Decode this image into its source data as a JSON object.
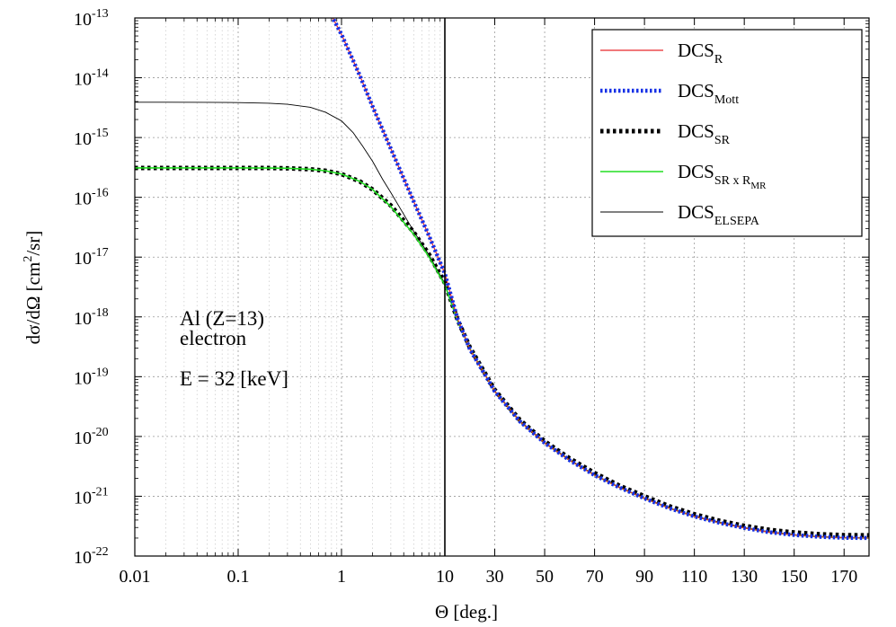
{
  "chart_data": {
    "type": "line",
    "xlabel": "Θ [deg.]",
    "ylabel_base": "dσ/dΩ [cm",
    "ylabel_sup": "2",
    "ylabel_tail": "/sr]",
    "x_scale": "log below 10 deg, linear above 10 deg",
    "y_scale": "log",
    "xlim": [
      0.01,
      180
    ],
    "ylim": [
      1e-22,
      1e-13
    ],
    "grid": true,
    "legend_position": "top-right",
    "annotations": [
      "Al (Z=13)",
      "electron",
      "E = 32 [keV]"
    ],
    "x_ticks": [
      {
        "value": 0.01,
        "label": "0.01"
      },
      {
        "value": 0.1,
        "label": "0.1"
      },
      {
        "value": 1,
        "label": "1"
      },
      {
        "value": 10,
        "label": "10"
      },
      {
        "value": 30,
        "label": "30"
      },
      {
        "value": 50,
        "label": "50"
      },
      {
        "value": 70,
        "label": "70"
      },
      {
        "value": 90,
        "label": "90"
      },
      {
        "value": 110,
        "label": "110"
      },
      {
        "value": 130,
        "label": "130"
      },
      {
        "value": 150,
        "label": "150"
      },
      {
        "value": 170,
        "label": "170"
      }
    ],
    "y_ticks": [
      {
        "exp": -13,
        "base": "10",
        "sup": "-13"
      },
      {
        "exp": -14,
        "base": "10",
        "sup": "-14"
      },
      {
        "exp": -15,
        "base": "10",
        "sup": "-15"
      },
      {
        "exp": -16,
        "base": "10",
        "sup": "-16"
      },
      {
        "exp": -17,
        "base": "10",
        "sup": "-17"
      },
      {
        "exp": -18,
        "base": "10",
        "sup": "-18"
      },
      {
        "exp": -19,
        "base": "10",
        "sup": "-19"
      },
      {
        "exp": -20,
        "base": "10",
        "sup": "-20"
      },
      {
        "exp": -21,
        "base": "10",
        "sup": "-21"
      },
      {
        "exp": -22,
        "base": "10",
        "sup": "-22"
      }
    ],
    "series": [
      {
        "legend_base": "DCS",
        "legend_sub": "R",
        "legend_sub2": "",
        "color": "#e8282b",
        "dash": "none",
        "width": 1.2,
        "x": [
          0.8,
          1,
          1.5,
          2,
          3,
          5,
          7,
          10,
          15,
          20,
          30,
          40,
          50,
          60,
          70,
          80,
          90,
          100,
          110,
          120,
          130,
          140,
          150,
          160,
          170,
          180
        ],
        "y": [
          1.1e-13,
          5.3e-14,
          1.1e-14,
          3.3e-15,
          6.5e-16,
          8.5e-17,
          2.3e-17,
          5.3e-18,
          9.5e-19,
          2.9e-19,
          5.7e-20,
          1.8e-20,
          7.8e-21,
          4e-21,
          2.25e-21,
          1.4e-21,
          9.2e-22,
          6.3e-22,
          4.6e-22,
          3.6e-22,
          2.95e-22,
          2.5e-22,
          2.25e-22,
          2.1e-22,
          2.02e-22,
          2e-22
        ]
      },
      {
        "legend_base": "DCS",
        "legend_sub": "Mott",
        "legend_sub2": "",
        "color": "#1530e6",
        "dash": "2.5 2.5",
        "width": 4.5,
        "x": [
          0.8,
          1,
          1.5,
          2,
          3,
          5,
          7,
          10,
          15,
          20,
          30,
          40,
          50,
          60,
          70,
          80,
          90,
          100,
          110,
          120,
          130,
          140,
          150,
          160,
          170,
          180
        ],
        "y": [
          1.1e-13,
          5.3e-14,
          1.1e-14,
          3.3e-15,
          6.5e-16,
          8.5e-17,
          2.3e-17,
          5.3e-18,
          9.5e-19,
          2.9e-19,
          5.7e-20,
          1.8e-20,
          7.8e-21,
          4e-21,
          2.25e-21,
          1.4e-21,
          9.2e-22,
          6.3e-22,
          4.6e-22,
          3.6e-22,
          2.95e-22,
          2.5e-22,
          2.25e-22,
          2.1e-22,
          2.02e-22,
          2e-22
        ]
      },
      {
        "legend_base": "DCS",
        "legend_sub": "SR",
        "legend_sub2": "",
        "color": "#000000",
        "dash": "3.5 3.5",
        "width": 5,
        "x": [
          0.01,
          0.02,
          0.05,
          0.1,
          0.2,
          0.3,
          0.5,
          0.7,
          1,
          1.5,
          2,
          3,
          5,
          7,
          10,
          15,
          20,
          30,
          40,
          50,
          60,
          70,
          80,
          90,
          100,
          110,
          120,
          130,
          140,
          150,
          160,
          170,
          180
        ],
        "y": [
          3.1e-16,
          3.1e-16,
          3.1e-16,
          3.1e-16,
          3.09e-16,
          3.06e-16,
          2.95e-16,
          2.78e-16,
          2.45e-16,
          1.85e-16,
          1.35e-16,
          7.3e-17,
          2.6e-17,
          1.12e-17,
          3.7e-18,
          9.2e-19,
          3.1e-19,
          6e-20,
          1.9e-20,
          8.3e-21,
          4.3e-21,
          2.45e-21,
          1.5e-21,
          1e-21,
          6.8e-22,
          5e-22,
          3.9e-22,
          3.2e-22,
          2.75e-22,
          2.48e-22,
          2.32e-22,
          2.24e-22,
          2.22e-22
        ]
      },
      {
        "legend_base": "DCS",
        "legend_sub": "SR x R",
        "legend_sub2": "MR",
        "color": "#22dd22",
        "dash": "none",
        "width": 1.6,
        "x": [
          0.01,
          0.02,
          0.05,
          0.1,
          0.2,
          0.3,
          0.5,
          0.7,
          1,
          1.5,
          2,
          3,
          5,
          7,
          10,
          15,
          20,
          30,
          40,
          50,
          60,
          70,
          80,
          90,
          100,
          110,
          120,
          130,
          140,
          150,
          160,
          170,
          180
        ],
        "y": [
          3.1e-16,
          3.1e-16,
          3.1e-16,
          3.1e-16,
          3.09e-16,
          3.06e-16,
          2.95e-16,
          2.78e-16,
          2.45e-16,
          1.85e-16,
          1.35e-16,
          7e-17,
          2.4e-17,
          1.02e-17,
          3.4e-18,
          8.8e-19,
          2.95e-19,
          5.7e-20,
          1.8e-20,
          7.8e-21,
          4e-21,
          2.25e-21,
          1.4e-21,
          9.2e-22,
          6.3e-22,
          4.6e-22,
          3.6e-22,
          2.95e-22,
          2.5e-22,
          2.25e-22,
          2.1e-22,
          2.02e-22,
          2e-22
        ]
      },
      {
        "legend_base": "DCS",
        "legend_sub": "ELSEPA",
        "legend_sub2": "",
        "color": "#000000",
        "dash": "none",
        "width": 0.9,
        "x": [
          0.01,
          0.02,
          0.05,
          0.1,
          0.2,
          0.3,
          0.5,
          0.7,
          1,
          1.3,
          1.6,
          2,
          2.5,
          3,
          4,
          5,
          7,
          10,
          15,
          20,
          30,
          40,
          50,
          60,
          70,
          80,
          90,
          100,
          110,
          120,
          130,
          140,
          150,
          160,
          170,
          180
        ],
        "y": [
          3.9e-15,
          3.9e-15,
          3.88e-15,
          3.85e-15,
          3.75e-15,
          3.6e-15,
          3.2e-15,
          2.65e-15,
          1.9e-15,
          1.2e-15,
          7.2e-16,
          4e-16,
          2e-16,
          1.2e-16,
          5.2e-17,
          2.7e-17,
          1.1e-17,
          3.6e-18,
          9e-19,
          3e-19,
          5.8e-20,
          1.85e-20,
          8e-21,
          4.1e-21,
          2.3e-21,
          1.42e-21,
          9.4e-22,
          6.4e-22,
          4.7e-22,
          3.7e-22,
          3e-22,
          2.55e-22,
          2.28e-22,
          2.12e-22,
          2.04e-22,
          2.02e-22
        ]
      }
    ]
  }
}
